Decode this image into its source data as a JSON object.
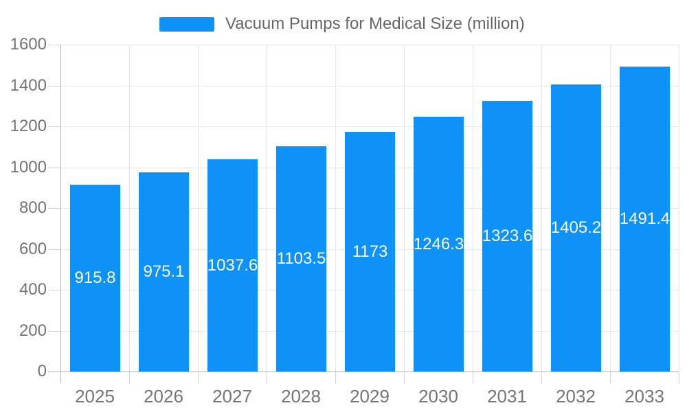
{
  "legend": {
    "items": [
      {
        "label": "Vacuum Pumps for Medical Size (million)",
        "color": "#0E92F8"
      }
    ],
    "position": "top"
  },
  "chart_data": {
    "type": "bar",
    "title": "Vacuum Pumps for Medical Size (million)",
    "categories": [
      "2025",
      "2026",
      "2027",
      "2028",
      "2029",
      "2030",
      "2031",
      "2032",
      "2033"
    ],
    "values": [
      915.8,
      975.1,
      1037.6,
      1103.5,
      1173,
      1246.3,
      1323.6,
      1405.2,
      1491.4
    ],
    "value_labels": [
      "915.8",
      "975.1",
      "1037.6",
      "1103.5",
      "1173",
      "1246.3",
      "1323.6",
      "1405.2",
      "1491.4"
    ],
    "value_label_position": "inside-center",
    "xlabel": "",
    "ylabel": "",
    "ylim": [
      0,
      1600
    ],
    "yticks": [
      0,
      200,
      400,
      600,
      800,
      1000,
      1200,
      1400,
      1600
    ],
    "grid": true,
    "legend_position": "top",
    "colors": {
      "bar": "#0E92F8",
      "axis_label_text": "#757575",
      "legend_text": "#666666",
      "grid_line": "#E6E6E6",
      "axis_line": "#B3B3B3",
      "tick_mark": "#D2D2D2",
      "value_label_text": "#FFFFFF",
      "background": "#FFFFFF"
    }
  }
}
